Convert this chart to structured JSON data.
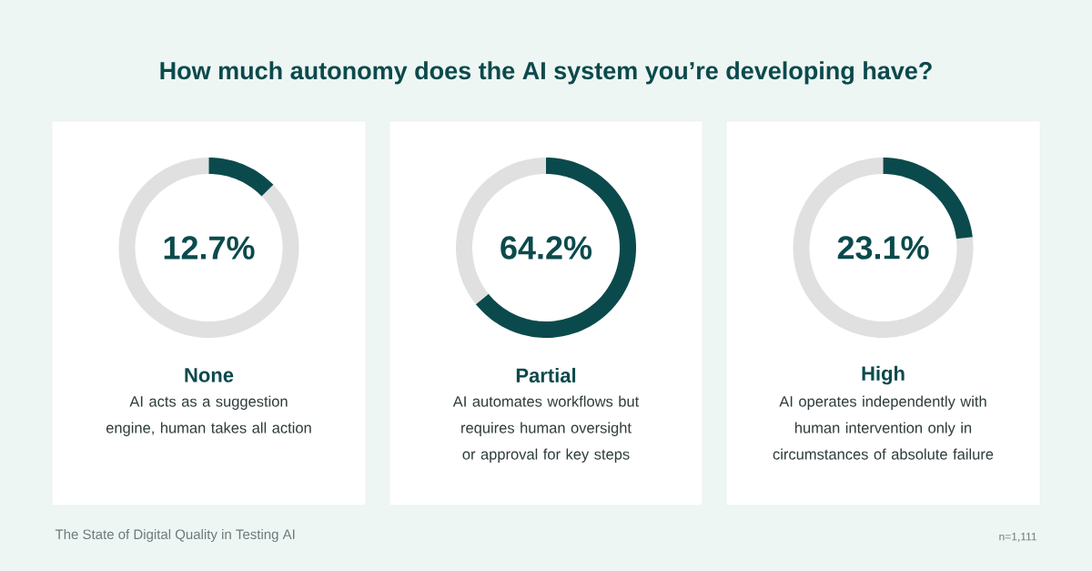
{
  "chart_data": [
    {
      "type": "donut",
      "title": "None",
      "subtitle": "AI acts as a suggestion engine, human takes all action",
      "categories": [
        null,
        null
      ],
      "values": [
        12.7,
        87.3
      ],
      "colors": [
        "#0b4a4c",
        "#e0e0e0"
      ],
      "annotations": [
        "12.7%",
        "How much autonomy does the AI system you’re developing have?"
      ]
    },
    {
      "type": "donut",
      "title": "Partial",
      "subtitle": "AI automates workflows but requires human oversight or approval for key steps",
      "categories": [
        null,
        null
      ],
      "values": [
        64.2,
        35.8
      ],
      "colors": [
        "#0b4a4c",
        "#e0e0e0"
      ],
      "annotations": [
        "64.2%"
      ]
    },
    {
      "type": "donut",
      "title": "High",
      "subtitle": "AI operates independently with human intervention only in circumstances of absolute failure",
      "categories": [
        null,
        null
      ],
      "values": [
        23.1,
        76.9
      ],
      "colors": [
        "#0b4a4c",
        "#e0e0e0"
      ],
      "annotations": [
        "23.1%",
        "The State of Digital Quality in Testing AI",
        "n=1,111"
      ]
    }
  ]
}
